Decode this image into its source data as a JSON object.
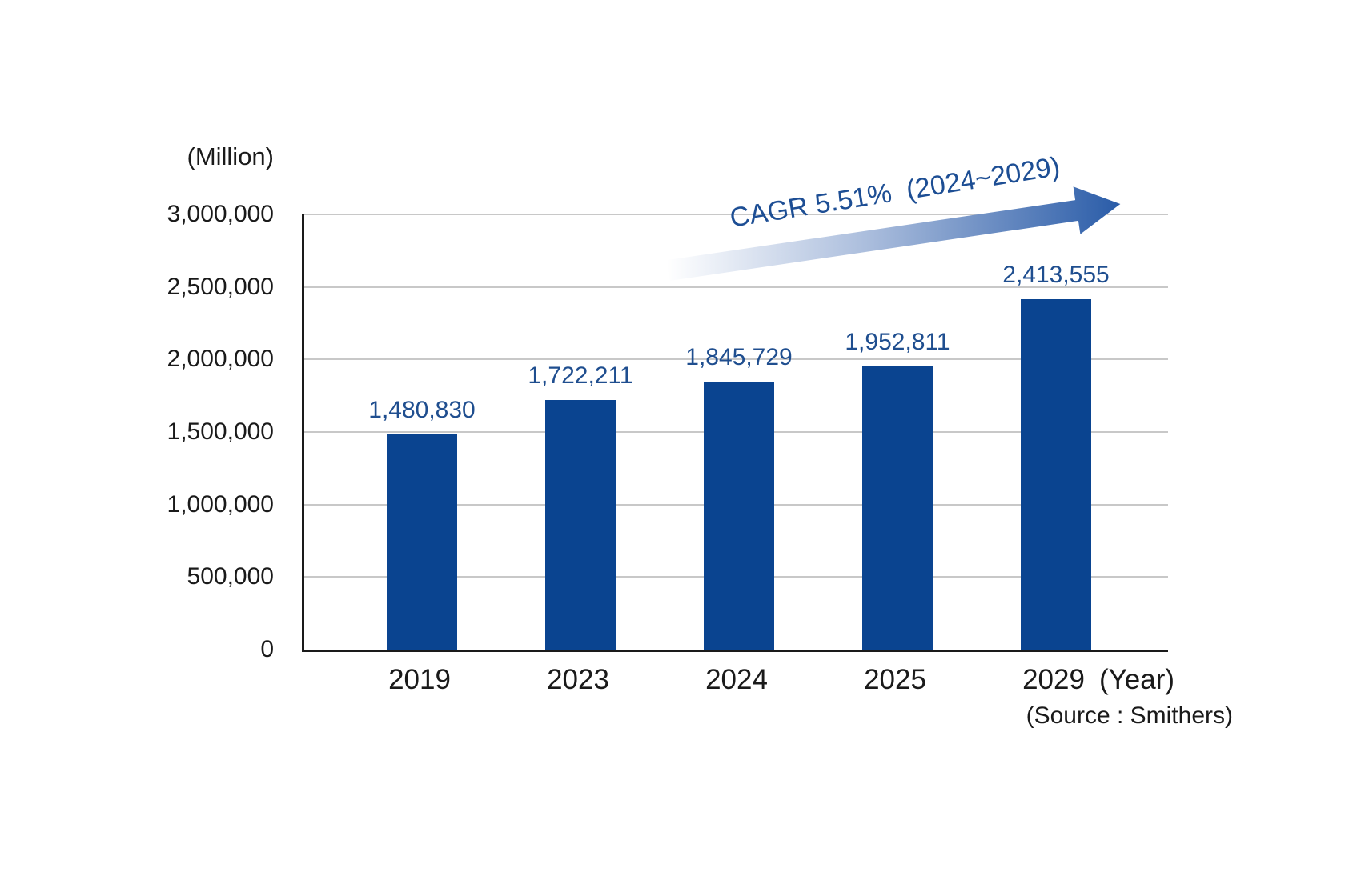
{
  "chart_data": {
    "type": "bar",
    "title": "",
    "unit_label": "(Million)",
    "categories": [
      "2019",
      "2023",
      "2024",
      "2025",
      "2029"
    ],
    "values": [
      1480830,
      1722211,
      1845729,
      1952811,
      2413555
    ],
    "value_labels": [
      "1,480,830",
      "1,722,211",
      "1,845,729",
      "1,952,811",
      "2,413,555"
    ],
    "xlabel": "(Year)",
    "ylabel": "",
    "ylim": [
      0,
      3000000
    ],
    "yticks": [
      0,
      500000,
      1000000,
      1500000,
      2000000,
      2500000,
      3000000
    ],
    "ytick_labels": [
      "0",
      "500,000",
      "1,000,000",
      "1,500,000",
      "2,000,000",
      "2,500,000",
      "3,000,000"
    ],
    "grid": true,
    "legend": "none",
    "annotation": "CAGR 5.51%  (2024~2029)",
    "source": "(Source : Smithers)",
    "colors": {
      "bar": "#0a4490",
      "value_label": "#1f4e8f",
      "annotation_text": "#1d4e94",
      "arrow_light": "#ffffff",
      "arrow_mid": "#a9bcdc",
      "arrow_dark": "#2a5ca8",
      "grid": "#c8c8c8",
      "axis": "#1a1a1a"
    }
  }
}
